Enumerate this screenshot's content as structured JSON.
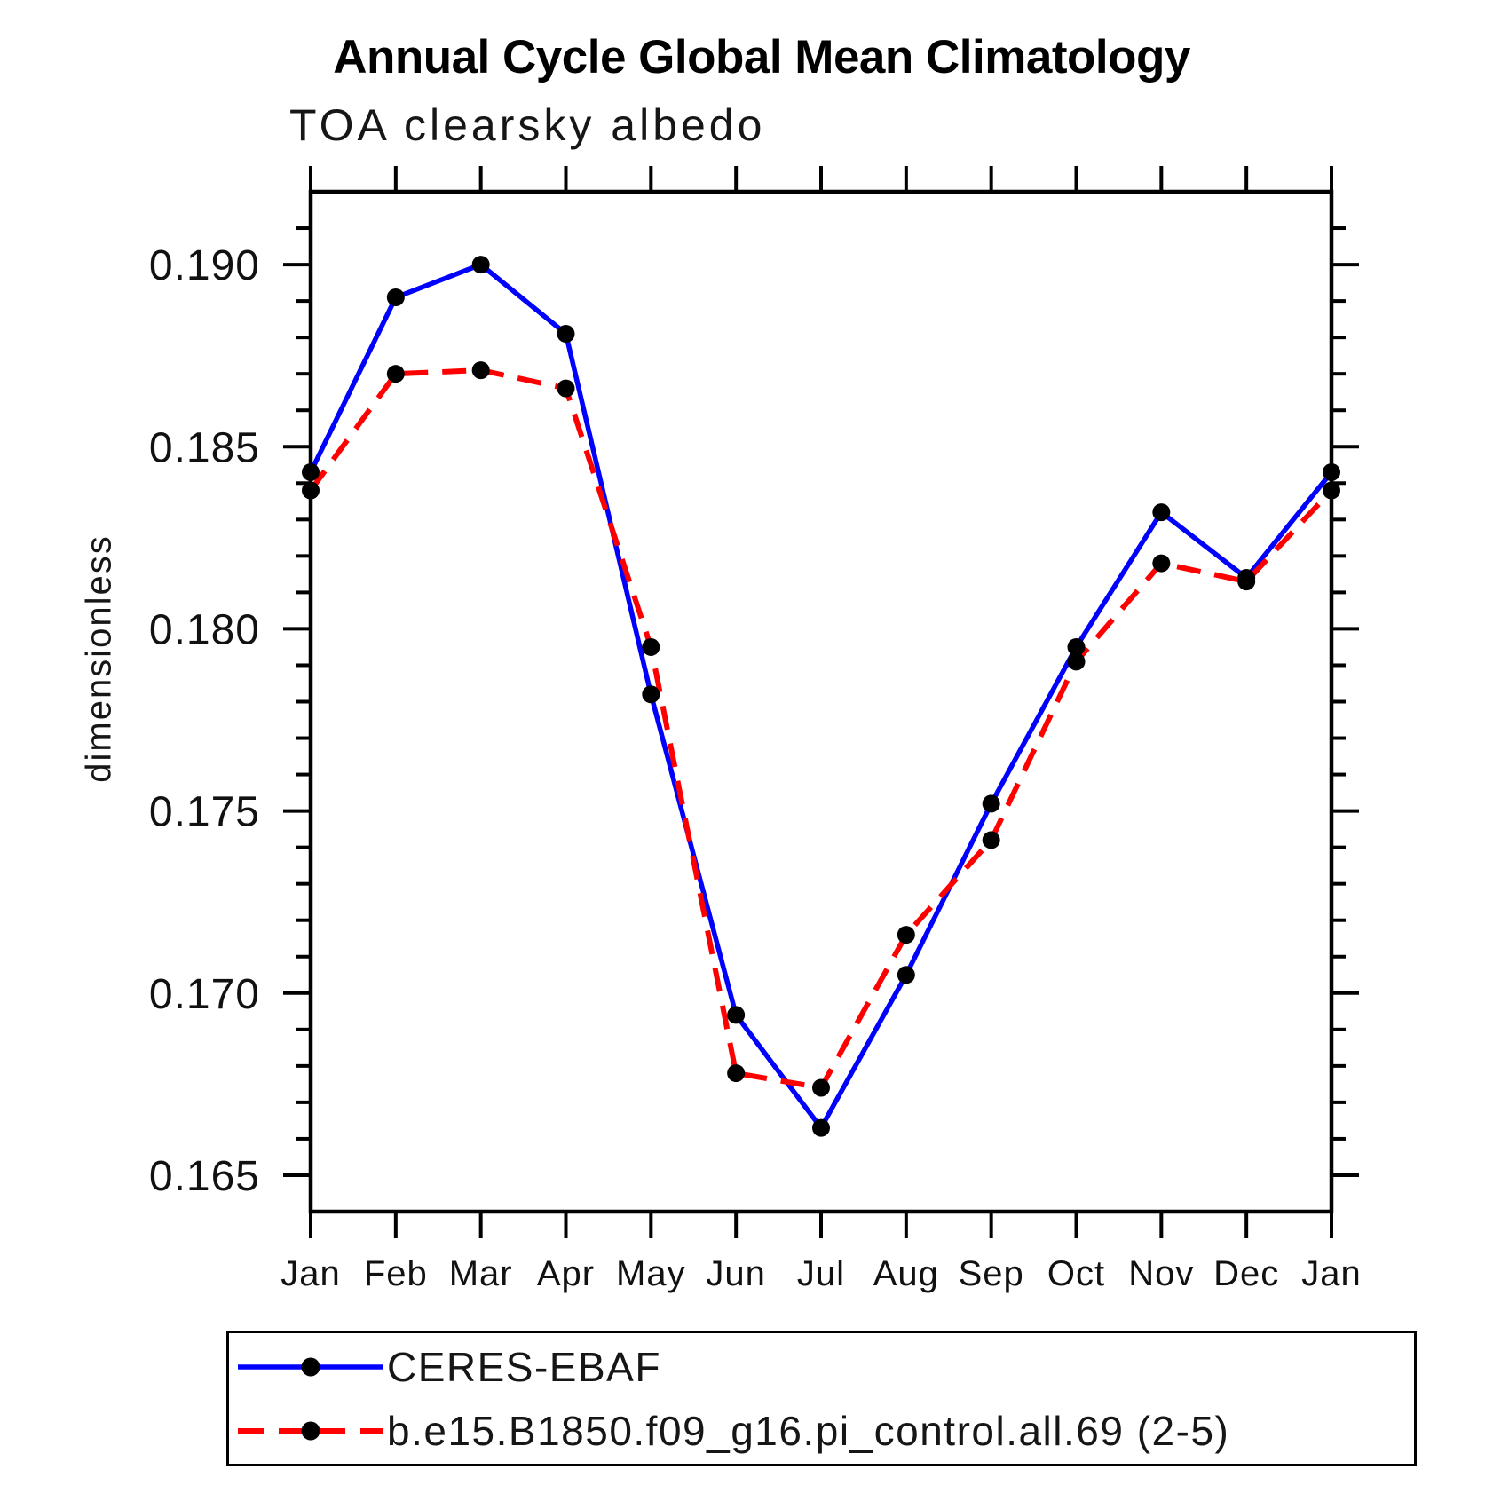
{
  "chart_data": {
    "type": "line",
    "title": "Annual Cycle Global Mean Climatology",
    "subtitle": "TOA clearsky albedo",
    "ylabel": "dimensionless",
    "xlabel": "",
    "categories": [
      "Jan",
      "Feb",
      "Mar",
      "Apr",
      "May",
      "Jun",
      "Jul",
      "Aug",
      "Sep",
      "Oct",
      "Nov",
      "Dec",
      "Jan"
    ],
    "ylim": [
      0.164,
      0.192
    ],
    "y_major_ticks": [
      0.19,
      0.185,
      0.18,
      0.175,
      0.17,
      0.165
    ],
    "y_minor_step": 0.001,
    "grid": false,
    "legend_position": "bottom-left-box",
    "axis_color": "#000000",
    "marker_color": "#000000",
    "series": [
      {
        "name": "CERES-EBAF",
        "color": "#0000ff",
        "line_style": "solid",
        "marker": "circle",
        "values": [
          0.1843,
          0.1891,
          0.19,
          0.1881,
          0.1782,
          0.1694,
          0.1663,
          0.1705,
          0.1752,
          0.1795,
          0.1832,
          0.1814,
          0.1843
        ]
      },
      {
        "name": "b.e15.B1850.f09_g16.pi_control.all.69 (2-5)",
        "color": "#ff0000",
        "line_style": "dashed",
        "marker": "circle",
        "values": [
          0.1838,
          0.187,
          0.1871,
          0.1866,
          0.1795,
          0.1678,
          0.1674,
          0.1716,
          0.1742,
          0.1791,
          0.1818,
          0.1813,
          0.1838
        ]
      }
    ]
  }
}
